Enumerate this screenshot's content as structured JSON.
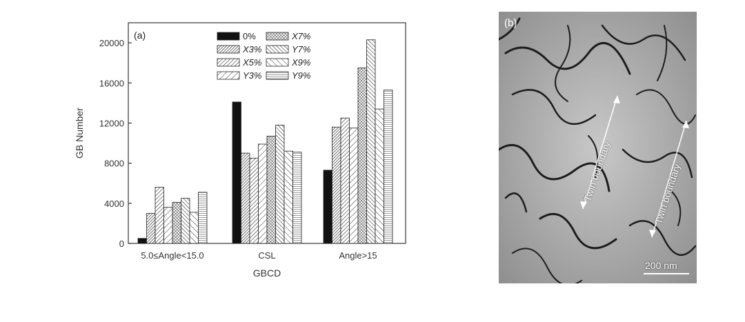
{
  "chart_data": {
    "type": "bar",
    "panel_label": "(a)",
    "xlabel": "GBCD",
    "ylabel": "GB Number",
    "ylim": [
      0,
      22000
    ],
    "yticks": [
      0,
      4000,
      8000,
      12000,
      16000,
      20000
    ],
    "grid": false,
    "legend_position": "top-center",
    "categories": [
      "5.0≤Angle<15.0",
      "CSL",
      "Angle>15"
    ],
    "series": [
      {
        "name": "0%",
        "values": [
          500,
          14100,
          7300
        ],
        "pattern": "solid"
      },
      {
        "name": "X3%",
        "values": [
          3000,
          9000,
          11600
        ],
        "pattern": "diag-dense"
      },
      {
        "name": "X5%",
        "values": [
          5600,
          8500,
          12500
        ],
        "pattern": "diag-medium"
      },
      {
        "name": "Y3%",
        "values": [
          3600,
          9900,
          11500
        ],
        "pattern": "diag-sparse"
      },
      {
        "name": "X7%",
        "values": [
          4100,
          10700,
          17500
        ],
        "pattern": "cross-dense"
      },
      {
        "name": "Y7%",
        "values": [
          4500,
          11800,
          20300
        ],
        "pattern": "back-diag"
      },
      {
        "name": "X9%",
        "values": [
          3100,
          9200,
          13400
        ],
        "pattern": "back-diag-sparse"
      },
      {
        "name": "Y9%",
        "values": [
          5100,
          9100,
          15300
        ],
        "pattern": "horizontal"
      }
    ]
  },
  "panel_b": {
    "label": "(b)",
    "annotation_1": "Twin boundary",
    "annotation_2": "Twin boundary",
    "scale_bar": "200 nm"
  }
}
